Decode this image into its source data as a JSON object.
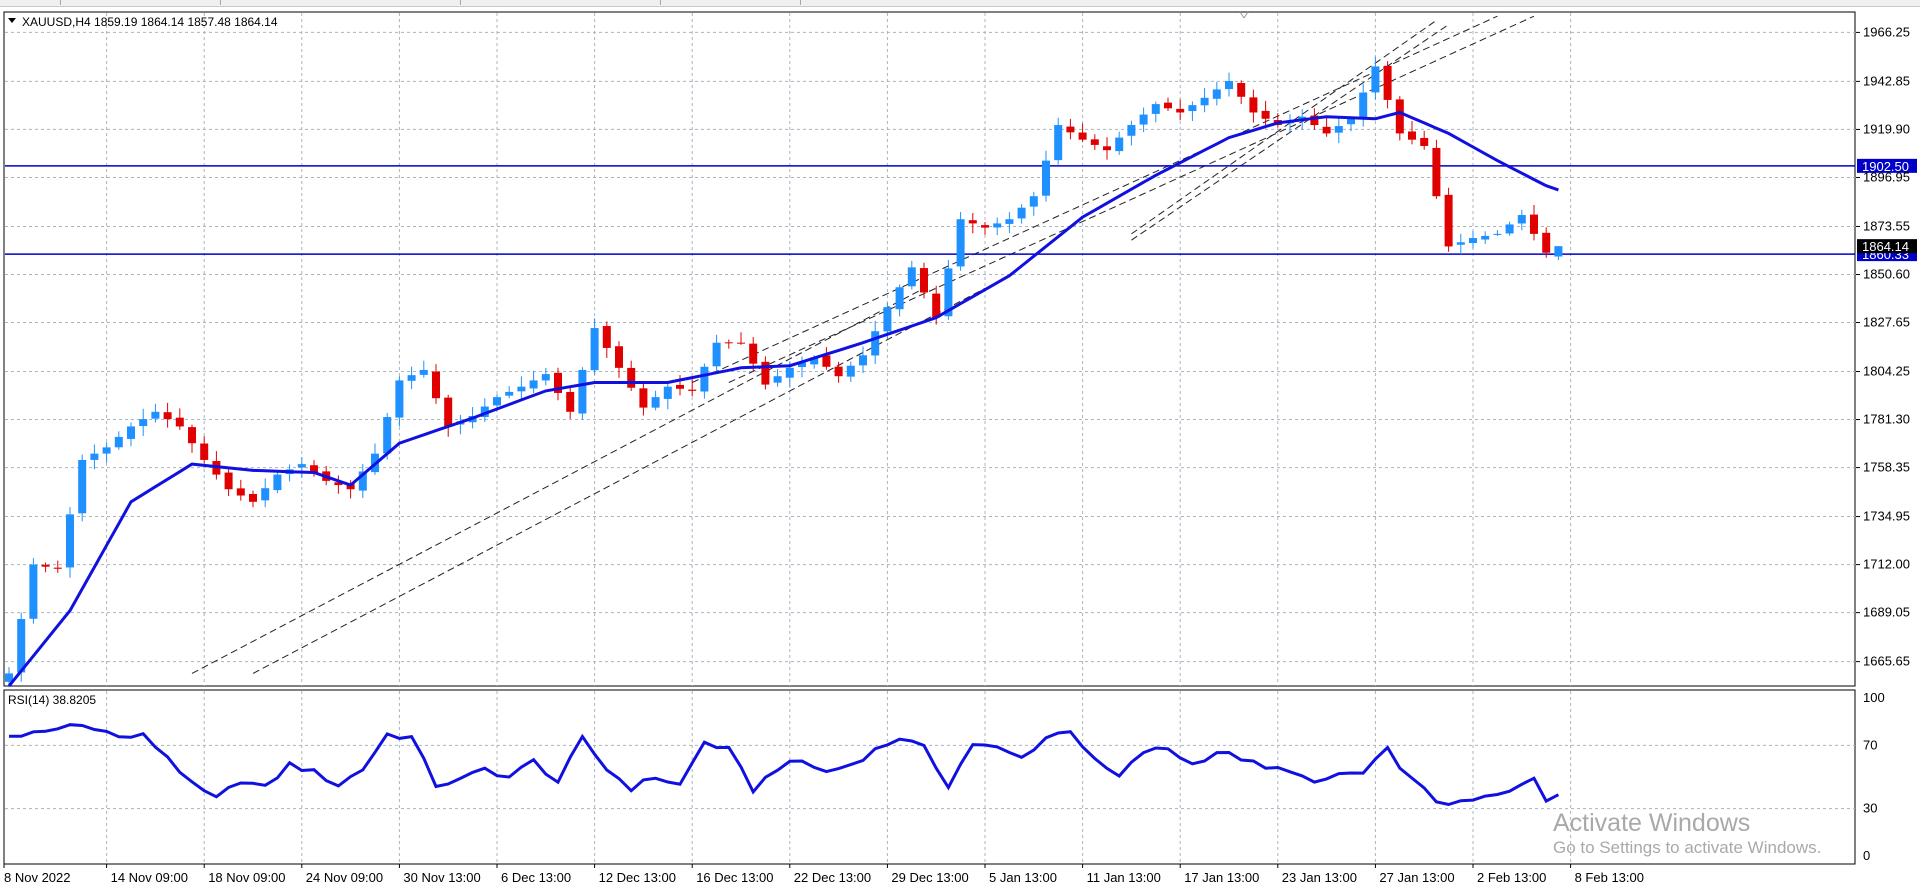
{
  "chart": {
    "header": "XAUUSD,H4  1859.19 1864.14 1857.48 1864.14",
    "price_axis_labels": [
      "1966.25",
      "1942.85",
      "1919.90",
      "1896.95",
      "1873.55",
      "1850.60",
      "1827.65",
      "1804.25",
      "1781.30",
      "1758.35",
      "1734.95",
      "1712.00",
      "1689.05",
      "1665.65"
    ],
    "time_axis_labels": [
      "8 Nov 2022",
      "14 Nov 09:00",
      "18 Nov 09:00",
      "24 Nov 09:00",
      "30 Nov 13:00",
      "6 Dec 13:00",
      "12 Dec 13:00",
      "16 Dec 13:00",
      "22 Dec 13:00",
      "29 Dec 13:00",
      "5 Jan 13:00",
      "11 Jan 13:00",
      "17 Jan 13:00",
      "23 Jan 13:00",
      "27 Jan 13:00",
      "2 Feb 13:00",
      "8 Feb 13:00"
    ],
    "price_levels": [
      {
        "label": "1902.50",
        "value": 1902.5
      },
      {
        "label": "1860.33",
        "value": 1860.33
      }
    ],
    "current_price_label": "1864.14",
    "current_price": 1864.14,
    "colors": {
      "bull": "#1e90ff",
      "bear": "#e00000",
      "moving_average": "#1010e0",
      "level_line": "#0000c8",
      "channel": "#222222",
      "grid": "#a8b4c0",
      "current_tag": "#000000"
    }
  },
  "rsi": {
    "header": "RSI(14) 38.8205",
    "levels": [
      "100",
      "70",
      "30",
      "0"
    ]
  },
  "watermark": {
    "title": "Activate Windows",
    "subtitle": "Go to Settings to activate Windows."
  },
  "chart_data": {
    "type": "candlestick",
    "symbol": "XAUUSD",
    "timeframe": "H4",
    "ohlc_last": {
      "open": 1859.19,
      "high": 1864.14,
      "low": 1857.48,
      "close": 1864.14
    },
    "y_range": [
      1654,
      1976
    ],
    "horizontal_levels": [
      1902.5,
      1860.33
    ],
    "close_anchors": [
      [
        0,
        1660
      ],
      [
        2,
        1712
      ],
      [
        4,
        1710
      ],
      [
        6,
        1762
      ],
      [
        8,
        1768
      ],
      [
        10,
        1778
      ],
      [
        12,
        1785
      ],
      [
        14,
        1778
      ],
      [
        16,
        1762
      ],
      [
        18,
        1748
      ],
      [
        20,
        1742
      ],
      [
        22,
        1755
      ],
      [
        24,
        1760
      ],
      [
        26,
        1752
      ],
      [
        28,
        1748
      ],
      [
        30,
        1765
      ],
      [
        32,
        1800
      ],
      [
        34,
        1805
      ],
      [
        36,
        1778
      ],
      [
        38,
        1783
      ],
      [
        40,
        1792
      ],
      [
        42,
        1797
      ],
      [
        44,
        1803
      ],
      [
        46,
        1785
      ],
      [
        48,
        1825
      ],
      [
        50,
        1806
      ],
      [
        52,
        1787
      ],
      [
        54,
        1797
      ],
      [
        56,
        1795
      ],
      [
        58,
        1818
      ],
      [
        60,
        1818
      ],
      [
        62,
        1798
      ],
      [
        64,
        1806
      ],
      [
        66,
        1811
      ],
      [
        68,
        1802
      ],
      [
        70,
        1812
      ],
      [
        72,
        1835
      ],
      [
        74,
        1854
      ],
      [
        76,
        1830
      ],
      [
        78,
        1877
      ],
      [
        80,
        1873
      ],
      [
        82,
        1877
      ],
      [
        84,
        1888
      ],
      [
        86,
        1922
      ],
      [
        88,
        1915
      ],
      [
        90,
        1910
      ],
      [
        92,
        1922
      ],
      [
        94,
        1932
      ],
      [
        96,
        1928
      ],
      [
        98,
        1935
      ],
      [
        100,
        1943
      ],
      [
        102,
        1928
      ],
      [
        104,
        1922
      ],
      [
        106,
        1926
      ],
      [
        108,
        1918
      ],
      [
        110,
        1925
      ],
      [
        112,
        1950
      ],
      [
        114,
        1918
      ],
      [
        116,
        1912
      ],
      [
        118,
        1864
      ],
      [
        120,
        1868
      ],
      [
        122,
        1870
      ],
      [
        124,
        1879
      ],
      [
        126,
        1861
      ],
      [
        127,
        1864.14
      ]
    ],
    "ma_anchors": [
      [
        0,
        1654
      ],
      [
        5,
        1690
      ],
      [
        10,
        1742
      ],
      [
        15,
        1760
      ],
      [
        20,
        1757
      ],
      [
        25,
        1756
      ],
      [
        28,
        1750
      ],
      [
        32,
        1770
      ],
      [
        38,
        1782
      ],
      [
        44,
        1795
      ],
      [
        48,
        1799
      ],
      [
        54,
        1799
      ],
      [
        60,
        1806
      ],
      [
        64,
        1807
      ],
      [
        70,
        1818
      ],
      [
        76,
        1830
      ],
      [
        82,
        1850
      ],
      [
        88,
        1878
      ],
      [
        94,
        1898
      ],
      [
        100,
        1916
      ],
      [
        104,
        1923
      ],
      [
        108,
        1926
      ],
      [
        112,
        1925
      ],
      [
        114,
        1928
      ],
      [
        118,
        1918
      ],
      [
        122,
        1905
      ],
      [
        126,
        1893
      ],
      [
        127,
        1891
      ]
    ],
    "channel_lines": [
      {
        "from": [
          15,
          1660
        ],
        "to": [
          75,
          1844
        ]
      },
      {
        "from": [
          20,
          1660
        ],
        "to": [
          80,
          1844
        ]
      },
      {
        "from": [
          56,
          1799
        ],
        "to": [
          122,
          1974
        ]
      },
      {
        "from": [
          59,
          1799
        ],
        "to": [
          125,
          1974
        ]
      },
      {
        "from": [
          92,
          1870
        ],
        "to": [
          117,
          1972
        ]
      },
      {
        "from": [
          92,
          1867
        ],
        "to": [
          118,
          1970
        ]
      }
    ],
    "rsi_anchors": [
      [
        0,
        76
      ],
      [
        3,
        78
      ],
      [
        5,
        83
      ],
      [
        7,
        82
      ],
      [
        9,
        75
      ],
      [
        11,
        76
      ],
      [
        13,
        63
      ],
      [
        15,
        45
      ],
      [
        17,
        36
      ],
      [
        19,
        48
      ],
      [
        21,
        43
      ],
      [
        23,
        58
      ],
      [
        25,
        53
      ],
      [
        27,
        45
      ],
      [
        29,
        55
      ],
      [
        31,
        77
      ],
      [
        33,
        75
      ],
      [
        35,
        45
      ],
      [
        37,
        48
      ],
      [
        39,
        55
      ],
      [
        41,
        50
      ],
      [
        43,
        60
      ],
      [
        45,
        47
      ],
      [
        47,
        74
      ],
      [
        49,
        55
      ],
      [
        51,
        43
      ],
      [
        53,
        50
      ],
      [
        55,
        45
      ],
      [
        57,
        72
      ],
      [
        59,
        67
      ],
      [
        61,
        42
      ],
      [
        63,
        56
      ],
      [
        65,
        60
      ],
      [
        67,
        53
      ],
      [
        69,
        58
      ],
      [
        71,
        67
      ],
      [
        73,
        75
      ],
      [
        75,
        68
      ],
      [
        77,
        45
      ],
      [
        79,
        71
      ],
      [
        81,
        68
      ],
      [
        83,
        62
      ],
      [
        85,
        75
      ],
      [
        87,
        80
      ],
      [
        89,
        60
      ],
      [
        91,
        50
      ],
      [
        93,
        66
      ],
      [
        95,
        68
      ],
      [
        97,
        58
      ],
      [
        99,
        66
      ],
      [
        101,
        62
      ],
      [
        103,
        55
      ],
      [
        105,
        55
      ],
      [
        107,
        45
      ],
      [
        109,
        52
      ],
      [
        111,
        52
      ],
      [
        113,
        67
      ],
      [
        115,
        48
      ],
      [
        117,
        35
      ],
      [
        119,
        33
      ],
      [
        121,
        37
      ],
      [
        123,
        40
      ],
      [
        125,
        50
      ],
      [
        126,
        36
      ],
      [
        127,
        38.82
      ]
    ],
    "rsi_levels": [
      0,
      30,
      70,
      100
    ]
  }
}
